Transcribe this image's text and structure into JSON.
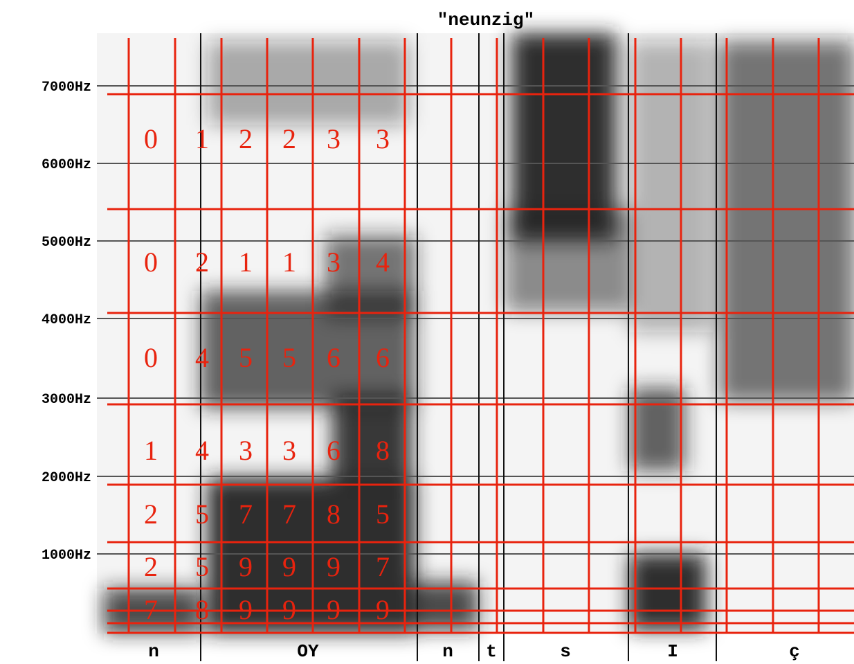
{
  "title": "\"neunzig\"",
  "y_axis_labels": [
    "7000Hz",
    "6000Hz",
    "5000Hz",
    "4000Hz",
    "3000Hz",
    "2000Hz",
    "1000Hz"
  ],
  "segments": [
    "n",
    "OY",
    "n",
    "t",
    "s",
    "I",
    "ç"
  ],
  "grid": {
    "rows": [
      [
        0,
        1,
        2,
        2,
        3,
        3
      ],
      [
        0,
        2,
        1,
        1,
        3,
        4
      ],
      [
        0,
        4,
        5,
        5,
        6,
        6
      ],
      [
        1,
        4,
        3,
        3,
        6,
        8
      ],
      [
        2,
        5,
        7,
        7,
        8,
        5
      ],
      [
        2,
        5,
        9,
        9,
        9,
        7
      ],
      [
        7,
        8,
        9,
        9,
        9,
        9
      ]
    ]
  }
}
